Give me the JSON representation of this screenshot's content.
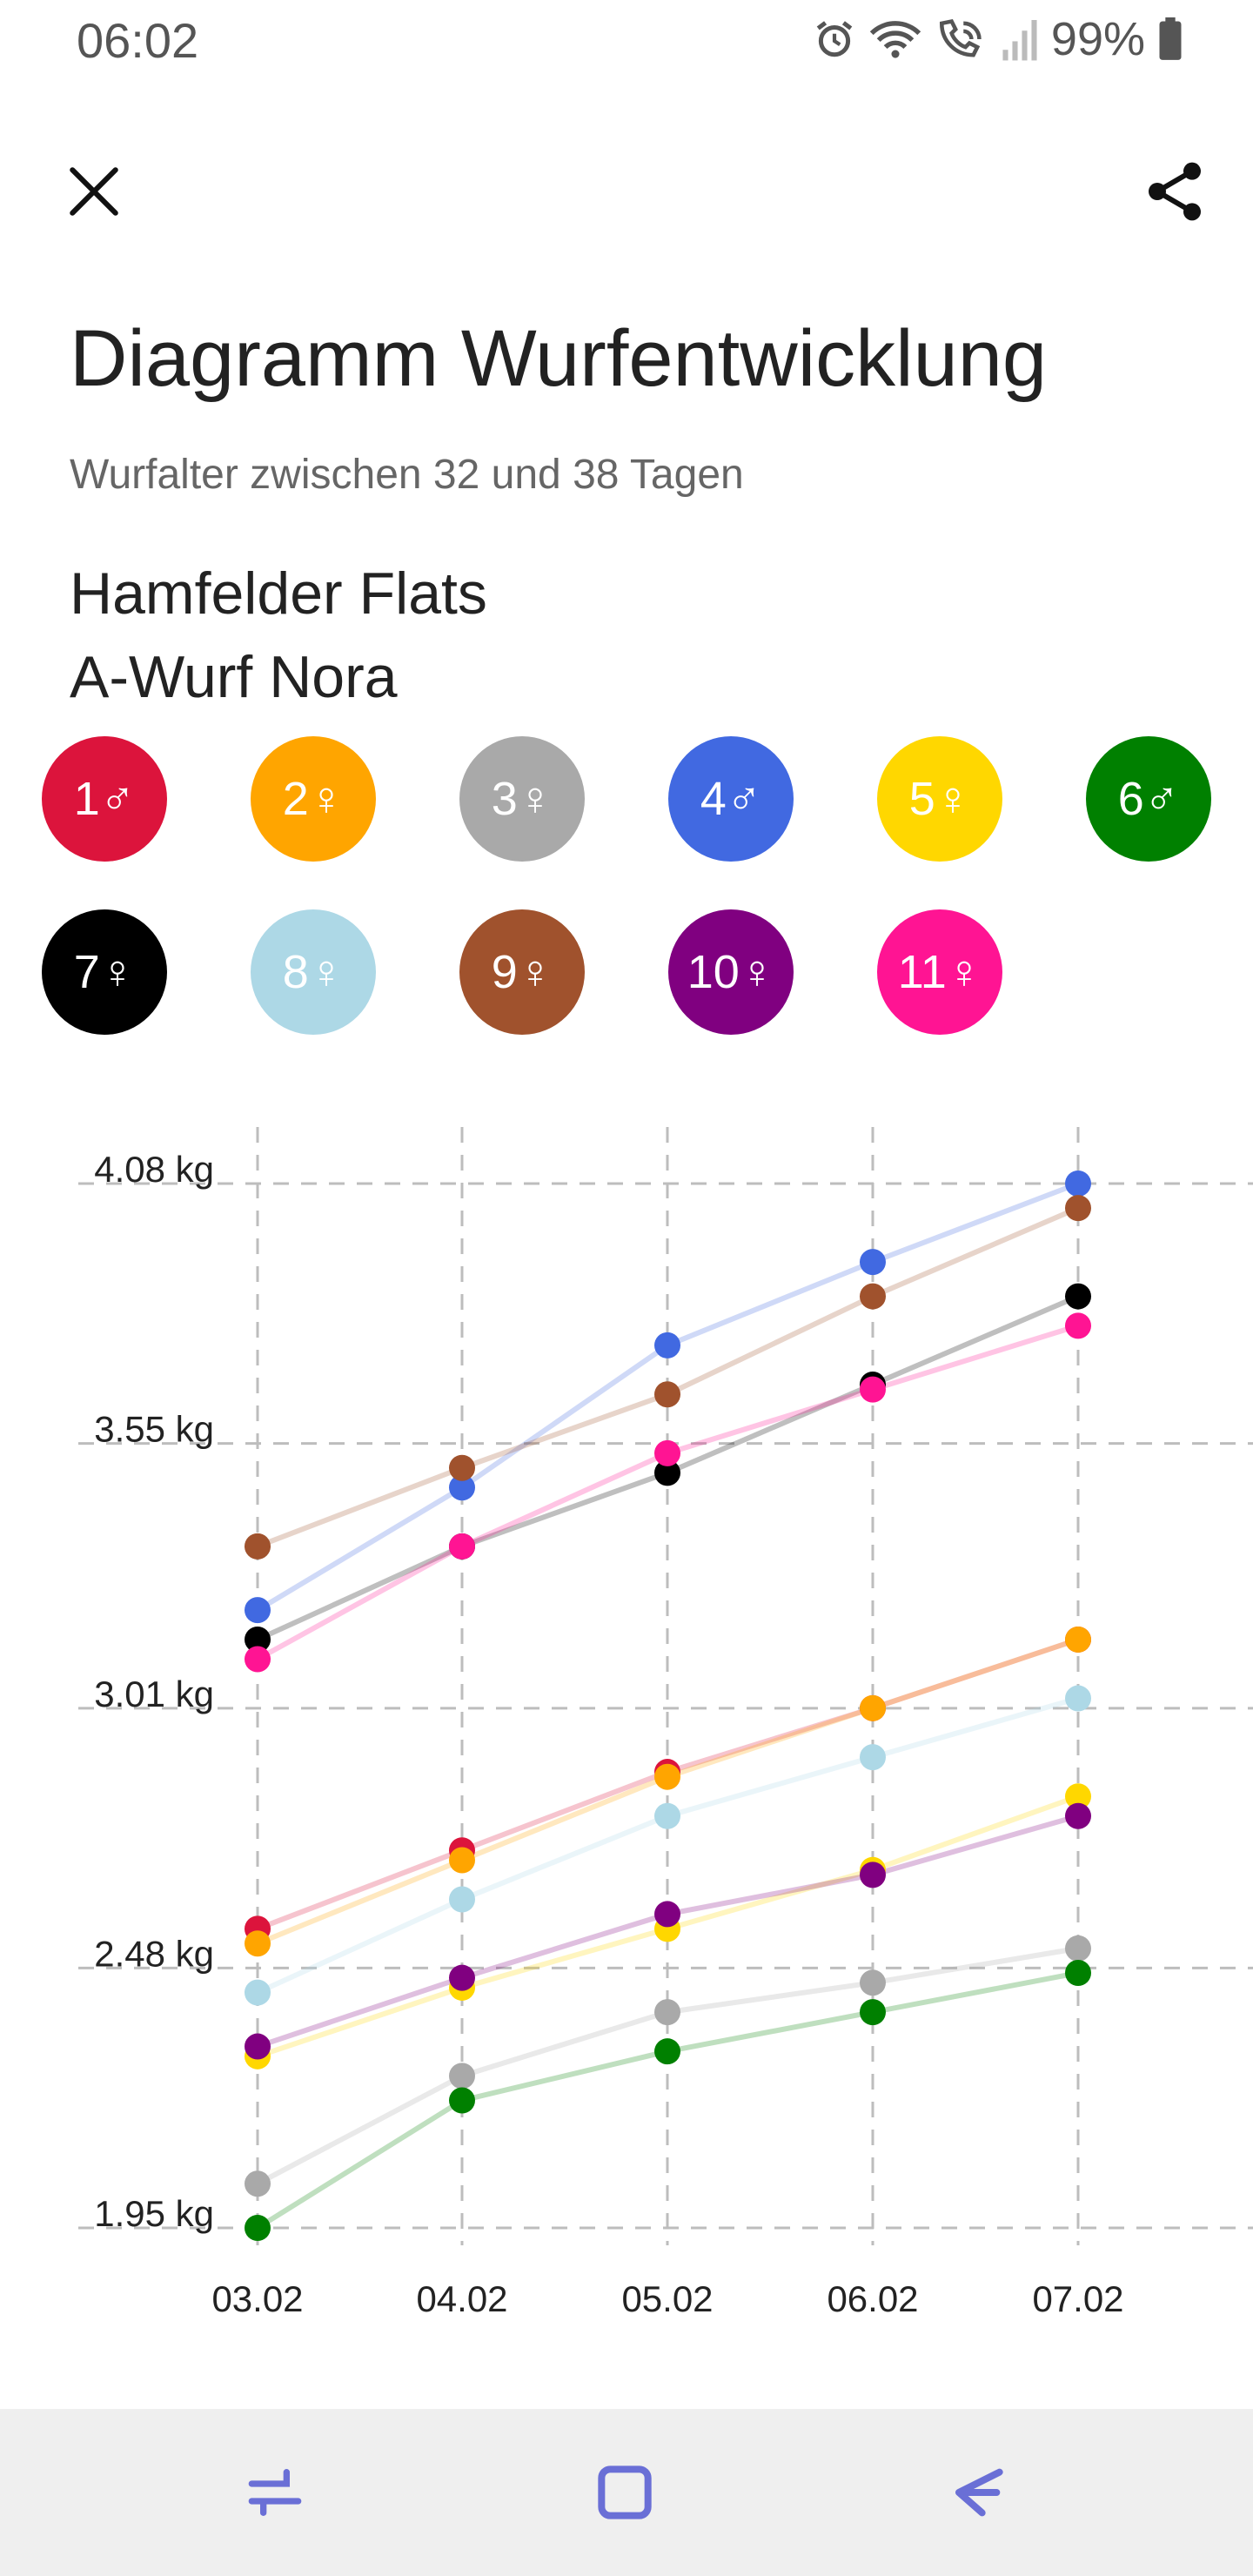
{
  "status_bar": {
    "time": "06:02",
    "battery": "99%",
    "icons": [
      "alarm-icon",
      "wifi-icon",
      "wifi-calling-icon",
      "signal-icon",
      "battery-icon"
    ]
  },
  "toolbar": {
    "close_icon": "close-icon",
    "share_icon": "share-icon"
  },
  "header": {
    "title": "Diagramm Wurfentwicklung",
    "subtitle": "Wurfalter zwischen 32 und 38 Tagen",
    "kennel": "Hamfelder Flats",
    "litter": "A-Wurf Nora"
  },
  "puppies": [
    {
      "label": "1♂",
      "color": "#DC143C"
    },
    {
      "label": "2♀",
      "color": "#FFA500"
    },
    {
      "label": "3♀",
      "color": "#A9A9A9"
    },
    {
      "label": "4♂",
      "color": "#4169E1"
    },
    {
      "label": "5♀",
      "color": "#FFD700"
    },
    {
      "label": "6♂",
      "color": "#008000"
    },
    {
      "label": "7♀",
      "color": "#000000"
    },
    {
      "label": "8♀",
      "color": "#ADD8E6"
    },
    {
      "label": "9♀",
      "color": "#A0522D"
    },
    {
      "label": "10♀",
      "color": "#800080"
    },
    {
      "label": "11♀",
      "color": "#FF1493"
    }
  ],
  "chart_data": {
    "type": "line",
    "title": "",
    "xlabel": "",
    "ylabel": "",
    "categories": [
      "03.02",
      "04.02",
      "05.02",
      "06.02",
      "07.02"
    ],
    "y_ticks": [
      1.95,
      2.48,
      3.01,
      3.55,
      4.08
    ],
    "y_tick_labels": [
      "1.95 kg",
      "2.48 kg",
      "3.01 kg",
      "3.55 kg",
      "4.08 kg"
    ],
    "ylim": [
      1.95,
      4.08
    ],
    "grid": true,
    "series": [
      {
        "name": "1♂",
        "color": "#DC143C",
        "values": [
          2.56,
          2.72,
          2.88,
          3.01,
          3.15
        ]
      },
      {
        "name": "2♀",
        "color": "#FFA500",
        "values": [
          2.53,
          2.7,
          2.87,
          3.01,
          3.15
        ]
      },
      {
        "name": "3♀",
        "color": "#A9A9A9",
        "values": [
          2.04,
          2.26,
          2.39,
          2.45,
          2.52
        ]
      },
      {
        "name": "4♂",
        "color": "#4169E1",
        "values": [
          3.21,
          3.46,
          3.75,
          3.92,
          4.08
        ]
      },
      {
        "name": "5♀",
        "color": "#FFD700",
        "values": [
          2.3,
          2.44,
          2.56,
          2.68,
          2.83
        ]
      },
      {
        "name": "6♂",
        "color": "#008000",
        "values": [
          1.95,
          2.21,
          2.31,
          2.39,
          2.47
        ]
      },
      {
        "name": "7♀",
        "color": "#000000",
        "values": [
          3.15,
          3.34,
          3.49,
          3.67,
          3.85
        ]
      },
      {
        "name": "8♀",
        "color": "#ADD8E6",
        "values": [
          2.43,
          2.62,
          2.79,
          2.91,
          3.03
        ]
      },
      {
        "name": "9♀",
        "color": "#A0522D",
        "values": [
          3.34,
          3.5,
          3.65,
          3.85,
          4.03
        ]
      },
      {
        "name": "10♀",
        "color": "#800080",
        "values": [
          2.32,
          2.46,
          2.59,
          2.67,
          2.79
        ]
      },
      {
        "name": "11♀",
        "color": "#FF1493",
        "values": [
          3.11,
          3.34,
          3.53,
          3.66,
          3.79
        ]
      }
    ]
  },
  "nav": {
    "recents_icon": "recents-icon",
    "home_icon": "home-icon",
    "back_icon": "back-icon"
  }
}
